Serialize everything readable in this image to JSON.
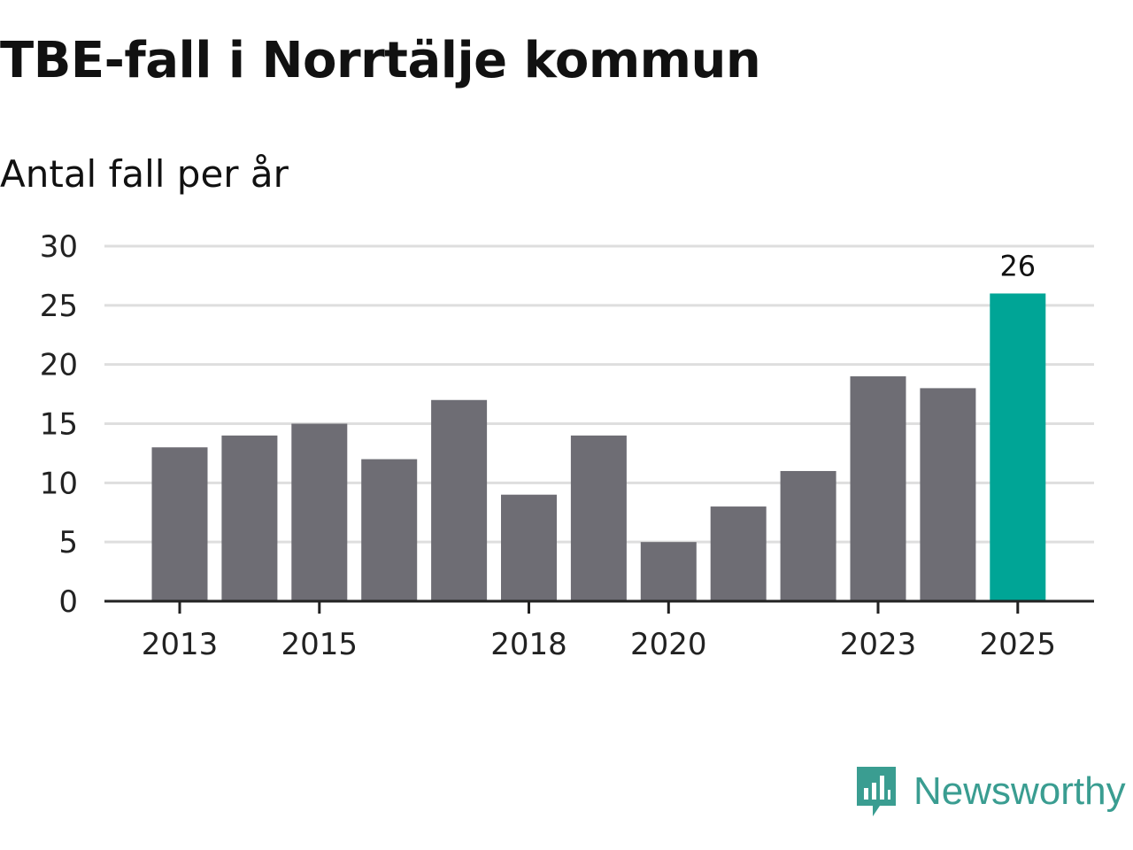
{
  "chart_data": {
    "type": "bar",
    "title": "TBE-fall i Norrtälje kommun",
    "subtitle": "Antal fall per år",
    "xlabel": "",
    "ylabel": "",
    "categories": [
      "2013",
      "2014",
      "2015",
      "2016",
      "2017",
      "2018",
      "2019",
      "2020",
      "2021",
      "2022",
      "2023",
      "2024",
      "2025"
    ],
    "values": [
      13,
      14,
      15,
      12,
      17,
      9,
      14,
      5,
      8,
      11,
      19,
      18,
      26
    ],
    "x_tick_labels": [
      "2013",
      "2015",
      "2018",
      "2020",
      "2023",
      "2025"
    ],
    "y_ticks": [
      0,
      5,
      10,
      15,
      20,
      25,
      30
    ],
    "ylim": [
      0,
      30
    ],
    "grid": true,
    "highlight": {
      "category": "2025",
      "label": "26"
    },
    "colors": {
      "bar": "#6e6d74",
      "highlight": "#00a596",
      "grid": "#dedede",
      "axis": "#222222"
    }
  },
  "brand": {
    "name": "Newsworthy",
    "logo_icon": "bar-chart-speech-bubble-icon",
    "color": "#3a9d91"
  }
}
